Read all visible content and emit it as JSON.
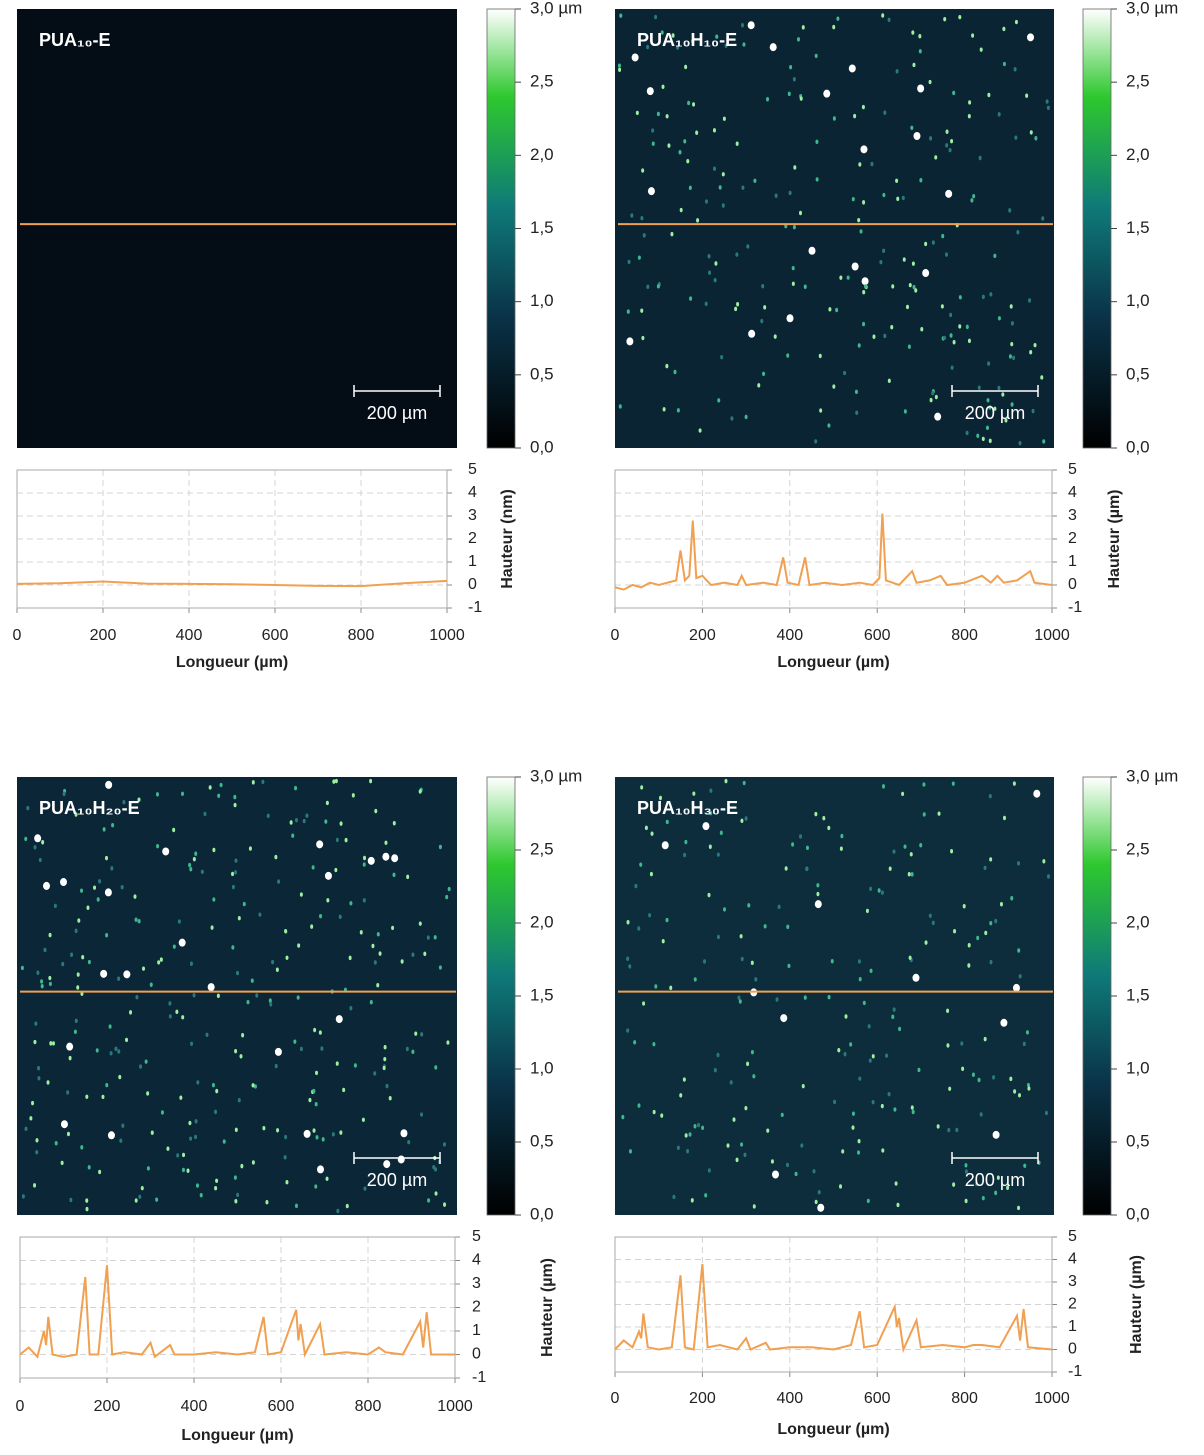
{
  "images": [
    {
      "label": "PUA₁₀-E",
      "background": "#040d16",
      "scale_bar": "200 µm",
      "colorbar": {
        "lim": [
          0,
          3
        ],
        "ticks": [
          {
            "value": 0,
            "label": "0,0"
          },
          {
            "value": 0.5,
            "label": "0,5"
          },
          {
            "value": 1,
            "label": "1,0"
          },
          {
            "value": 1.5,
            "label": "1,5"
          },
          {
            "value": 2,
            "label": "2,0"
          },
          {
            "value": 2.5,
            "label": "2,5"
          },
          {
            "value": 3,
            "label": "3,0 µm"
          }
        ]
      }
    },
    {
      "label": "PUA₁₀H₁₀-E",
      "background": "#0a2434",
      "scale_bar": "200 µm",
      "colorbar": {
        "lim": [
          0,
          3
        ],
        "ticks": [
          {
            "value": 0,
            "label": "0,0"
          },
          {
            "value": 0.5,
            "label": "0,5"
          },
          {
            "value": 1,
            "label": "1,0"
          },
          {
            "value": 1.5,
            "label": "1,5"
          },
          {
            "value": 2,
            "label": "2,0"
          },
          {
            "value": 2.5,
            "label": "2,5"
          },
          {
            "value": 3,
            "label": "3,0 µm"
          }
        ]
      }
    },
    {
      "label": "PUA₁₀H₂₀-E",
      "background": "#0b2636",
      "scale_bar": "200 µm",
      "colorbar": {
        "lim": [
          0,
          3
        ],
        "ticks": [
          {
            "value": 0,
            "label": "0,0"
          },
          {
            "value": 0.5,
            "label": "0,5"
          },
          {
            "value": 1,
            "label": "1,0"
          },
          {
            "value": 1.5,
            "label": "1,5"
          },
          {
            "value": 2,
            "label": "2,0"
          },
          {
            "value": 2.5,
            "label": "2,5"
          },
          {
            "value": 3,
            "label": "3,0 µm"
          }
        ]
      }
    },
    {
      "label": "PUA₁₀H₃₀-E",
      "background": "#0d2c3c",
      "scale_bar": "200 µm",
      "colorbar": {
        "lim": [
          0,
          3
        ],
        "ticks": [
          {
            "value": 0,
            "label": "0,0"
          },
          {
            "value": 0.5,
            "label": "0,5"
          },
          {
            "value": 1,
            "label": "1,0"
          },
          {
            "value": 1.5,
            "label": "1,5"
          },
          {
            "value": 2,
            "label": "2,0"
          },
          {
            "value": 2.5,
            "label": "2,5"
          },
          {
            "value": 3,
            "label": "3,0 µm"
          }
        ]
      }
    }
  ],
  "chart_data": [
    {
      "type": "line",
      "xlabel": "Longueur (µm)",
      "ylabel": "Hauteur (nm)",
      "color": "#f0a050",
      "grid": true,
      "xlim": [
        0,
        1000
      ],
      "ylim": [
        -1,
        5
      ],
      "xticks": [
        0,
        200,
        400,
        600,
        800,
        1000
      ],
      "yticks": [
        -1,
        0,
        1,
        2,
        3,
        4,
        5
      ],
      "x": [
        0,
        100,
        200,
        300,
        400,
        500,
        600,
        700,
        800,
        900,
        1000
      ],
      "values": [
        0.05,
        0.08,
        0.15,
        0.06,
        0.05,
        0.03,
        0.0,
        -0.04,
        -0.05,
        0.08,
        0.18
      ]
    },
    {
      "type": "line",
      "xlabel": "Longueur (µm)",
      "ylabel": "Hauteur (µm)",
      "color": "#f0a050",
      "grid": true,
      "xlim": [
        0,
        1000
      ],
      "ylim": [
        -1,
        5
      ],
      "xticks": [
        0,
        200,
        400,
        600,
        800,
        1000
      ],
      "yticks": [
        -1,
        0,
        1,
        2,
        3,
        4,
        5
      ],
      "x": [
        0,
        20,
        40,
        60,
        80,
        100,
        120,
        140,
        150,
        160,
        170,
        178,
        186,
        200,
        220,
        250,
        280,
        290,
        300,
        340,
        370,
        385,
        395,
        420,
        435,
        445,
        480,
        520,
        560,
        590,
        605,
        612,
        620,
        650,
        680,
        690,
        720,
        745,
        760,
        800,
        840,
        860,
        875,
        890,
        920,
        950,
        960,
        1000
      ],
      "values": [
        -0.1,
        -0.2,
        0.0,
        -0.1,
        0.1,
        0.0,
        0.1,
        0.2,
        1.5,
        0.2,
        0.4,
        2.8,
        0.3,
        0.4,
        0.0,
        0.1,
        0.0,
        0.4,
        0.0,
        0.1,
        0.0,
        1.2,
        0.1,
        0.0,
        1.2,
        0.0,
        0.1,
        0.0,
        0.1,
        0.0,
        0.3,
        3.1,
        0.2,
        0.0,
        0.6,
        0.1,
        0.2,
        0.4,
        0.0,
        0.1,
        0.4,
        0.1,
        0.4,
        0.1,
        0.2,
        0.6,
        0.1,
        0.0
      ]
    },
    {
      "type": "line",
      "xlabel": "Longueur (µm)",
      "ylabel": "Hauteur (µm)",
      "color": "#f0a050",
      "grid": true,
      "xlim": [
        0,
        1000
      ],
      "ylim": [
        -1,
        5
      ],
      "xticks": [
        0,
        200,
        400,
        600,
        800,
        1000
      ],
      "yticks": [
        -1,
        0,
        1,
        2,
        3,
        4,
        5
      ],
      "x": [
        0,
        20,
        40,
        55,
        60,
        65,
        75,
        100,
        130,
        150,
        160,
        180,
        200,
        212,
        240,
        280,
        300,
        310,
        345,
        355,
        400,
        450,
        500,
        540,
        560,
        570,
        600,
        635,
        640,
        645,
        655,
        690,
        700,
        750,
        800,
        825,
        840,
        880,
        920,
        927,
        935,
        945,
        1000
      ],
      "values": [
        0.0,
        0.3,
        -0.1,
        1.0,
        0.4,
        1.6,
        0.0,
        -0.1,
        0.0,
        3.3,
        0.0,
        0.0,
        3.8,
        0.0,
        0.1,
        0.0,
        0.5,
        -0.1,
        0.4,
        0.0,
        0.0,
        0.1,
        0.0,
        0.1,
        1.6,
        0.0,
        0.1,
        1.9,
        0.6,
        1.3,
        0.0,
        1.3,
        0.0,
        0.1,
        0.0,
        0.3,
        0.1,
        0.0,
        1.4,
        0.3,
        1.8,
        0.0,
        0.0
      ]
    },
    {
      "type": "line",
      "xlabel": "Longueur (µm)",
      "ylabel": "Hauteur (µm)",
      "color": "#f0a050",
      "grid": true,
      "xlim": [
        0,
        1000
      ],
      "ylim": [
        -1,
        5
      ],
      "xticks": [
        0,
        200,
        400,
        600,
        800,
        1000
      ],
      "yticks": [
        -1,
        0,
        1,
        2,
        3,
        4,
        5
      ],
      "x": [
        0,
        20,
        40,
        55,
        60,
        65,
        75,
        100,
        130,
        150,
        160,
        180,
        200,
        212,
        240,
        280,
        300,
        310,
        345,
        355,
        400,
        450,
        500,
        540,
        560,
        570,
        600,
        640,
        645,
        650,
        660,
        690,
        700,
        750,
        800,
        820,
        840,
        880,
        920,
        927,
        935,
        945,
        1000
      ],
      "values": [
        0.0,
        0.4,
        0.1,
        0.8,
        0.5,
        1.6,
        0.1,
        0.0,
        0.1,
        3.3,
        0.1,
        0.0,
        3.8,
        0.1,
        0.2,
        0.0,
        0.5,
        0.0,
        0.3,
        0.0,
        0.1,
        0.1,
        0.0,
        0.2,
        1.7,
        0.1,
        0.2,
        1.9,
        1.0,
        1.4,
        0.0,
        1.3,
        0.1,
        0.2,
        0.1,
        0.2,
        0.2,
        0.1,
        1.5,
        0.4,
        1.8,
        0.1,
        0.0
      ]
    }
  ]
}
